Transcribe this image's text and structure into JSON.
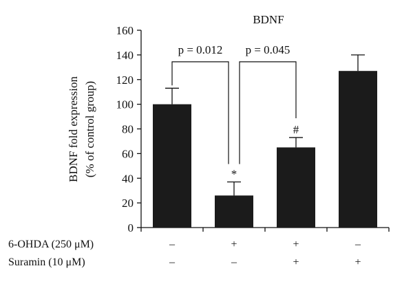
{
  "chart_data": {
    "type": "bar",
    "title": "BDNF",
    "ylabel_line1": "BDNF fold expression",
    "ylabel_line2": "(% of control group)",
    "ylim": [
      0,
      160
    ],
    "yticks": [
      0,
      20,
      40,
      60,
      80,
      100,
      120,
      140,
      160
    ],
    "values": [
      100,
      26,
      65,
      127
    ],
    "errors": [
      13,
      11,
      8,
      13
    ],
    "bar_labels": [
      "",
      "*",
      "#",
      ""
    ],
    "color": "#1b1b1b",
    "comparisons": [
      {
        "label": "p = 0.012",
        "from": 0,
        "to": 1
      },
      {
        "label": "p = 0.045",
        "from": 1,
        "to": 2
      }
    ],
    "treatment_rows": [
      {
        "label": "6-OHDA (250 μM)",
        "marks": [
          "–",
          "+",
          "+",
          "–"
        ]
      },
      {
        "label": "Suramin (10 μM)",
        "marks": [
          "–",
          "–",
          "+",
          "+"
        ]
      }
    ]
  }
}
